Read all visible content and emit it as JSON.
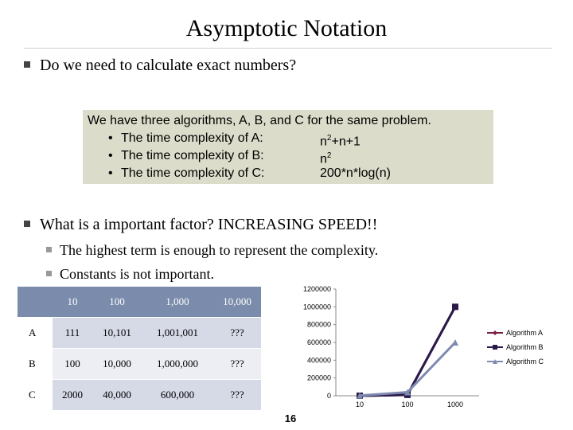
{
  "slide": {
    "title": "Asymptotic Notation",
    "bullet1": "Do we need to calculate exact numbers?",
    "box": {
      "intro": "We have three algorithms, A, B, and C for the same problem.",
      "items": [
        {
          "label": "The time complexity of A:",
          "value": "n",
          "sup": "2",
          "rest": "+n+1"
        },
        {
          "label": "The time complexity of B:",
          "value": "n",
          "sup": "2",
          "rest": ""
        },
        {
          "label": "The time complexity  of C:",
          "value": "200*n*log(n)",
          "sup": "",
          "rest": ""
        }
      ]
    },
    "bullet2": "What is a important factor? INCREASING SPEED!!",
    "sub1": "The highest term is enough to represent the complexity.",
    "sub2": "Constants is not important.",
    "page_number": "16"
  },
  "table": {
    "headers": [
      "",
      "10",
      "100",
      "1,000",
      "10,000"
    ],
    "rows": [
      [
        "A",
        "111",
        "10,101",
        "1,001,001",
        "???"
      ],
      [
        "B",
        "100",
        "10,000",
        "1,000,000",
        "???"
      ],
      [
        "C",
        "2000",
        "40,000",
        "600,000",
        "???"
      ]
    ]
  },
  "chart_data": {
    "type": "line",
    "categories": [
      "10",
      "100",
      "1000"
    ],
    "ylim": [
      0,
      1200000
    ],
    "yticks": [
      "0",
      "200000",
      "400000",
      "600000",
      "800000",
      "1000000",
      "1200000"
    ],
    "legend_position": "right",
    "series": [
      {
        "name": "Algorithm A",
        "values": [
          111,
          10101,
          1001001
        ],
        "color": "#7a1f47",
        "marker": "diamond"
      },
      {
        "name": "Algorithm B",
        "values": [
          100,
          10000,
          1000000
        ],
        "color": "#2a1a4a",
        "marker": "square"
      },
      {
        "name": "Algorithm C",
        "values": [
          2000,
          40000,
          600000
        ],
        "color": "#7f8ab0",
        "marker": "triangle"
      }
    ]
  }
}
